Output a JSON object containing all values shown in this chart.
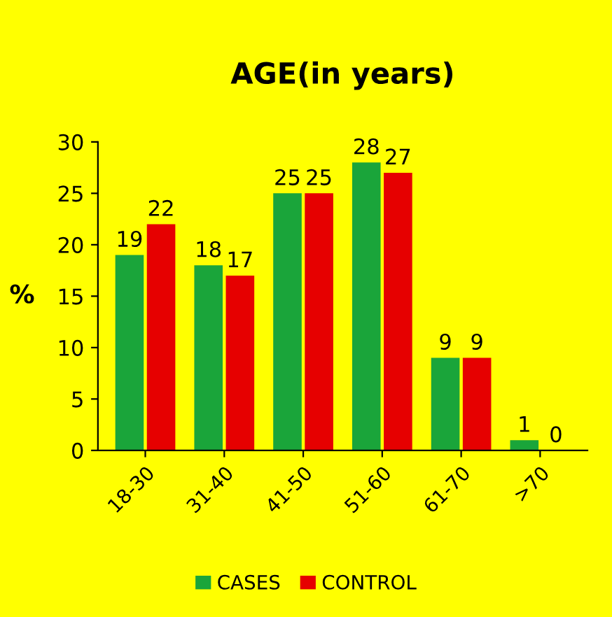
{
  "chart_data": {
    "type": "bar",
    "title": "AGE(in years)",
    "ylabel": "%",
    "categories": [
      "18-30",
      "31-40",
      "41-50",
      "51-60",
      "61-70",
      ">70"
    ],
    "series": [
      {
        "name": "CASES",
        "color": "#1aa53a",
        "values": [
          19,
          18,
          25,
          28,
          9,
          1
        ]
      },
      {
        "name": "CONTROL",
        "color": "#e60000",
        "values": [
          22,
          17,
          25,
          27,
          9,
          0
        ]
      }
    ],
    "ylim": [
      0,
      30
    ],
    "yticks": [
      0,
      5,
      10,
      15,
      20,
      25,
      30
    ],
    "grid": false,
    "legend": "bottom",
    "data_labels": true
  }
}
